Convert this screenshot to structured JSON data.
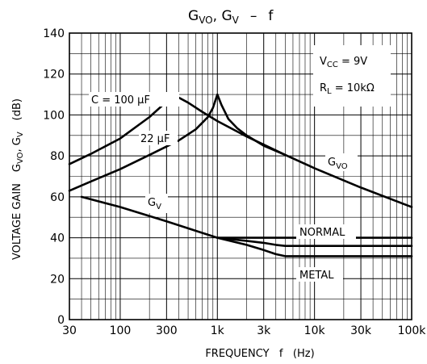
{
  "chart_data": {
    "type": "line",
    "title": "G_VO, G_V – f",
    "title_parts": {
      "g": "G",
      "vo_sub": "VO",
      "sep": ", ",
      "v_sub": "V",
      "dash": "–",
      "f": "f"
    },
    "xlabel": "FREQUENCY   f   (Hz)",
    "ylabel": "VOLTAGE GAIN   G_VO, G_V   (dB)",
    "ylabel_parts": {
      "prefix": "VOLTAGE GAIN",
      "g": "G",
      "vo_sub": "VO",
      "sep": ", ",
      "v_sub": "V",
      "unit": "(dB)"
    },
    "x_scale": "log",
    "xlim": [
      30,
      100000
    ],
    "ylim": [
      0,
      140
    ],
    "grid": true,
    "x_ticks": [
      {
        "value": 30,
        "label": "30"
      },
      {
        "value": 100,
        "label": "100"
      },
      {
        "value": 300,
        "label": "300"
      },
      {
        "value": 1000,
        "label": "1k"
      },
      {
        "value": 3000,
        "label": "3k"
      },
      {
        "value": 10000,
        "label": "10k"
      },
      {
        "value": 30000,
        "label": "30k"
      },
      {
        "value": 100000,
        "label": "100k"
      }
    ],
    "y_ticks": [
      0,
      20,
      40,
      60,
      80,
      100,
      120,
      140
    ],
    "conditions": {
      "vcc": {
        "main": "V",
        "sub": "CC",
        "rest": " = 9V"
      },
      "rl": {
        "main": "R",
        "sub": "L",
        "rest": " = 10kΩ"
      }
    },
    "annotations": {
      "c100": "C = 100 μF",
      "c22": "22 μF",
      "gvo_main": "G",
      "gvo_sub": "VO",
      "gv_main": "G",
      "gv_sub": "V",
      "normal": "NORMAL",
      "metal": "METAL"
    },
    "series": [
      {
        "key": "gvo_100uF",
        "x": [
          30,
          50,
          100,
          200,
          300,
          350,
          500,
          700,
          1000,
          2000,
          5000,
          10000,
          30000,
          100000
        ],
        "y": [
          76,
          81,
          88.5,
          99,
          106.5,
          110,
          106,
          101.5,
          97,
          89.5,
          80.5,
          74,
          64.5,
          55
        ]
      },
      {
        "key": "gvo_22uF",
        "x": [
          30,
          50,
          100,
          200,
          400,
          600,
          800,
          900,
          1000,
          1100,
          1300,
          1600,
          2000,
          3000,
          5000
        ],
        "y": [
          63,
          67.5,
          73.5,
          80.5,
          87.5,
          93,
          99,
          103.5,
          110,
          105,
          98,
          93.5,
          90,
          85,
          80.5
        ]
      },
      {
        "key": "gv",
        "x": [
          40,
          100,
          300,
          1000,
          3000,
          10000,
          30000,
          100000
        ],
        "y": [
          60,
          55,
          48,
          40,
          40,
          40,
          40,
          40
        ]
      },
      {
        "key": "gv_normal",
        "x": [
          1000,
          2000,
          3000,
          4000,
          5000,
          7000,
          10000,
          30000,
          100000
        ],
        "y": [
          40,
          38.5,
          37.5,
          36.5,
          36,
          36,
          36,
          36,
          36
        ]
      },
      {
        "key": "gv_metal",
        "x": [
          1000,
          2000,
          3000,
          4000,
          5000,
          7000,
          10000,
          30000,
          100000
        ],
        "y": [
          40,
          36.5,
          34,
          32,
          31,
          31,
          31,
          31,
          31
        ]
      }
    ]
  }
}
